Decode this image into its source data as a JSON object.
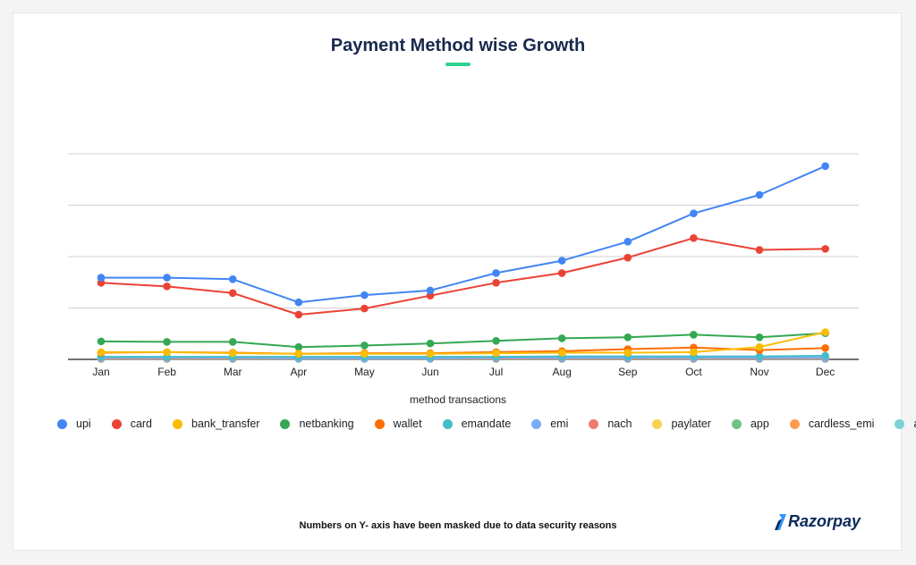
{
  "title": "Payment Method wise Growth",
  "footnote": "Numbers on Y- axis have been masked due to data security reasons",
  "logo_text": "Razorpay",
  "colors": {
    "accent_underline": "#2dd18d",
    "title": "#17294d",
    "logo": "#0b2a5b",
    "logo_mark": "#3395ff"
  },
  "chart_data": {
    "type": "line",
    "title": "Payment Method wise Growth",
    "xlabel": "method transactions",
    "ylabel": "",
    "y_tick_labels_masked": true,
    "ylim": [
      0,
      40
    ],
    "grid": true,
    "legend_position": "bottom",
    "categories": [
      "Jan",
      "Feb",
      "Mar",
      "Apr",
      "May",
      "Jun",
      "Jul",
      "Aug",
      "Sep",
      "Oct",
      "Nov",
      "Dec"
    ],
    "series": [
      {
        "name": "upi",
        "color": "#4285f4",
        "values": [
          15.9,
          15.9,
          15.6,
          11.1,
          12.5,
          13.4,
          16.8,
          19.2,
          22.9,
          28.4,
          32.0,
          37.6
        ]
      },
      {
        "name": "card",
        "color": "#ea4335",
        "values": [
          14.9,
          14.2,
          12.9,
          8.7,
          9.9,
          12.4,
          14.9,
          16.8,
          19.8,
          23.6,
          21.3,
          21.5
        ]
      },
      {
        "name": "bank_transfer",
        "color": "#fbbc04",
        "values": [
          1.4,
          1.4,
          1.2,
          1.1,
          1.1,
          1.1,
          1.2,
          1.3,
          1.3,
          1.4,
          2.4,
          5.3
        ]
      },
      {
        "name": "netbanking",
        "color": "#34a853",
        "values": [
          3.5,
          3.4,
          3.4,
          2.4,
          2.7,
          3.1,
          3.6,
          4.1,
          4.3,
          4.8,
          4.3,
          5.1
        ]
      },
      {
        "name": "wallet",
        "color": "#ff6d01",
        "values": [
          1.3,
          1.4,
          1.3,
          1.1,
          1.2,
          1.2,
          1.4,
          1.6,
          2.0,
          2.3,
          1.8,
          2.2
        ]
      },
      {
        "name": "emandate",
        "color": "#46bdc6",
        "values": [
          0.5,
          0.5,
          0.5,
          0.5,
          0.5,
          0.5,
          0.5,
          0.6,
          0.6,
          0.6,
          0.6,
          0.7
        ]
      },
      {
        "name": "emi",
        "color": "#7baaf7",
        "values": [
          0.3,
          0.3,
          0.3,
          0.2,
          0.2,
          0.2,
          0.3,
          0.3,
          0.3,
          0.3,
          0.3,
          0.3
        ]
      },
      {
        "name": "nach",
        "color": "#f07b72",
        "values": [
          0.2,
          0.2,
          0.2,
          0.2,
          0.2,
          0.2,
          0.2,
          0.2,
          0.2,
          0.2,
          0.2,
          0.2
        ]
      },
      {
        "name": "paylater",
        "color": "#fcd04f",
        "values": [
          0.2,
          0.2,
          0.2,
          0.2,
          0.2,
          0.2,
          0.2,
          0.3,
          0.3,
          0.3,
          0.3,
          0.3
        ]
      },
      {
        "name": "app",
        "color": "#71c287",
        "values": [
          0.1,
          0.1,
          0.1,
          0.1,
          0.1,
          0.1,
          0.1,
          0.1,
          0.1,
          0.1,
          0.1,
          0.1
        ]
      },
      {
        "name": "cardless_emi",
        "color": "#ff994d",
        "values": [
          0.1,
          0.1,
          0.1,
          0.1,
          0.1,
          0.1,
          0.1,
          0.1,
          0.1,
          0.1,
          0.1,
          0.1
        ]
      },
      {
        "name": "aeps",
        "color": "#7ed1d7",
        "values": [
          0.2,
          0.2,
          0.3,
          0.3,
          0.3,
          0.3,
          0.3,
          0.3,
          0.4,
          0.4,
          0.5,
          0.5
        ]
      }
    ]
  }
}
